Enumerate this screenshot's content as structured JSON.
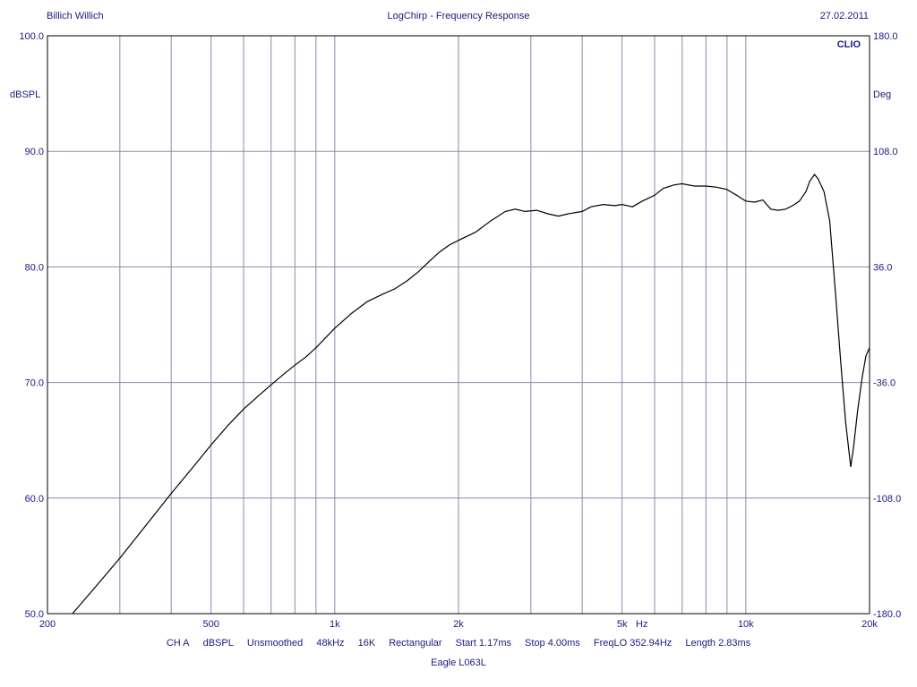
{
  "header": {
    "left": "Billich Willich",
    "center": "LogChirp - Frequency Response",
    "right": "27.02.2011"
  },
  "footer": {
    "items": [
      "CH A",
      "dBSPL",
      "Unsmoothed",
      "48kHz",
      "16K",
      "Rectangular",
      "Start 1.17ms",
      "Stop 4.00ms",
      "FreqLO 352.94Hz",
      "Length 2.83ms"
    ],
    "title": "Eagle L063L"
  },
  "chart_data": {
    "type": "line",
    "brand": "CLIO",
    "xlabel": "Hz",
    "ylabel": "dBSPL",
    "y2label": "Deg",
    "xscale": "log",
    "xlim": [
      200,
      20000
    ],
    "ylim": [
      50,
      100
    ],
    "y2lim": [
      -180,
      180
    ],
    "grid": true,
    "x_tick_labels": [
      {
        "value": 200,
        "label": "200"
      },
      {
        "value": 500,
        "label": "500"
      },
      {
        "value": 1000,
        "label": "1k"
      },
      {
        "value": 2000,
        "label": "2k"
      },
      {
        "value": 5000,
        "label": "5k"
      },
      {
        "value": 10000,
        "label": "10k"
      },
      {
        "value": 20000,
        "label": "20k"
      }
    ],
    "y_tick_labels": [
      {
        "value": 100,
        "label": "100.0"
      },
      {
        "value": 90,
        "label": "90.0"
      },
      {
        "value": 80,
        "label": "80.0"
      },
      {
        "value": 70,
        "label": "70.0"
      },
      {
        "value": 60,
        "label": "60.0"
      },
      {
        "value": 50,
        "label": "50.0"
      }
    ],
    "y2_tick_labels": [
      {
        "value": 180,
        "label": "180.0"
      },
      {
        "value": 108,
        "label": "108.0"
      },
      {
        "value": 36,
        "label": "36.0"
      },
      {
        "value": -36,
        "label": "-36.0"
      },
      {
        "value": -108,
        "label": "-108.0"
      },
      {
        "value": -180,
        "label": "-180.0"
      }
    ],
    "colors": {
      "grid": "#8a8aaa",
      "trace": "#000000",
      "text": "#1a1a80"
    },
    "series": [
      {
        "x": [
          230,
          260,
          300,
          350,
          400,
          450,
          500,
          550,
          600,
          650,
          700,
          750,
          800,
          850,
          900,
          1000,
          1100,
          1200,
          1300,
          1400,
          1500,
          1600,
          1700,
          1800,
          1900,
          2000,
          2200,
          2400,
          2600,
          2750,
          2900,
          3100,
          3300,
          3500,
          3700,
          4000,
          4200,
          4500,
          4800,
          5000,
          5300,
          5600,
          6000,
          6300,
          6700,
          7000,
          7500,
          8000,
          8500,
          9000,
          9500,
          10000,
          10500,
          11000,
          11500,
          12000,
          12500,
          13000,
          13500,
          14000,
          14300,
          14700,
          15000,
          15500,
          16000,
          16500,
          17000,
          17500,
          18000,
          18300,
          18700,
          19200,
          19600,
          20000
        ],
        "y": [
          50.0,
          52.2,
          54.8,
          57.8,
          60.4,
          62.6,
          64.6,
          66.3,
          67.7,
          68.8,
          69.8,
          70.7,
          71.5,
          72.2,
          73.0,
          74.7,
          76.0,
          77.0,
          77.6,
          78.1,
          78.8,
          79.6,
          80.5,
          81.3,
          81.9,
          82.3,
          83.0,
          84.0,
          84.8,
          85.0,
          84.8,
          84.9,
          84.6,
          84.4,
          84.6,
          84.8,
          85.2,
          85.4,
          85.3,
          85.4,
          85.2,
          85.7,
          86.2,
          86.8,
          87.1,
          87.2,
          87.0,
          87.0,
          86.9,
          86.7,
          86.2,
          85.7,
          85.6,
          85.8,
          85.0,
          84.9,
          85.0,
          85.3,
          85.7,
          86.5,
          87.4,
          88.0,
          87.6,
          86.5,
          84.0,
          78.0,
          72.0,
          66.5,
          62.7,
          64.5,
          67.5,
          70.5,
          72.3,
          73.0
        ]
      }
    ]
  }
}
